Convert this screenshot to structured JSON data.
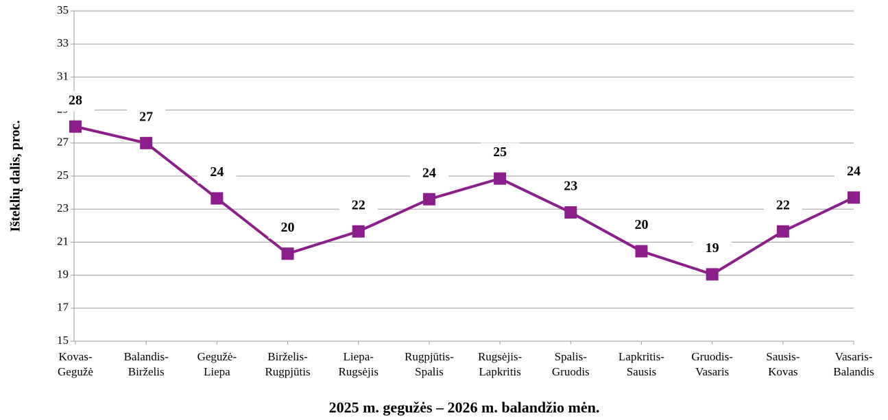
{
  "chart_data": {
    "type": "line",
    "y_label": "Išteklių dalis, proc.",
    "x_label": "2025 m. gegužės – 2026 m. balandžio mėn.",
    "categories": [
      [
        "Kovas-",
        "Gegužė"
      ],
      [
        "Balandis-",
        "Birželis"
      ],
      [
        "Gegužė-",
        "Liepa"
      ],
      [
        "Birželis-",
        "Rugpjūtis"
      ],
      [
        "Liepa-",
        "Rugsėjis"
      ],
      [
        "Rugpjūtis-",
        "Spalis"
      ],
      [
        "Rugsėjis-",
        "Lapkritis"
      ],
      [
        "Spalis-",
        "Gruodis"
      ],
      [
        "Lapkritis-",
        "Sausis"
      ],
      [
        "Gruodis-",
        "Vasaris"
      ],
      [
        "Sausis-",
        "Kovas"
      ],
      [
        "Vasaris-",
        "Balandis"
      ]
    ],
    "values": [
      28.0,
      27.0,
      23.65,
      20.3,
      21.65,
      23.6,
      24.85,
      22.8,
      20.45,
      19.05,
      21.65,
      23.7
    ],
    "value_labels": [
      "28",
      "27",
      "24",
      "20",
      "22",
      "24",
      "25",
      "23",
      "20",
      "19",
      "22",
      "24"
    ],
    "color": "#8b1e8b",
    "ylim": [
      15,
      35
    ],
    "yticks": [
      15,
      17,
      19,
      21,
      23,
      25,
      27,
      29,
      31,
      33,
      35
    ],
    "grid": true
  }
}
